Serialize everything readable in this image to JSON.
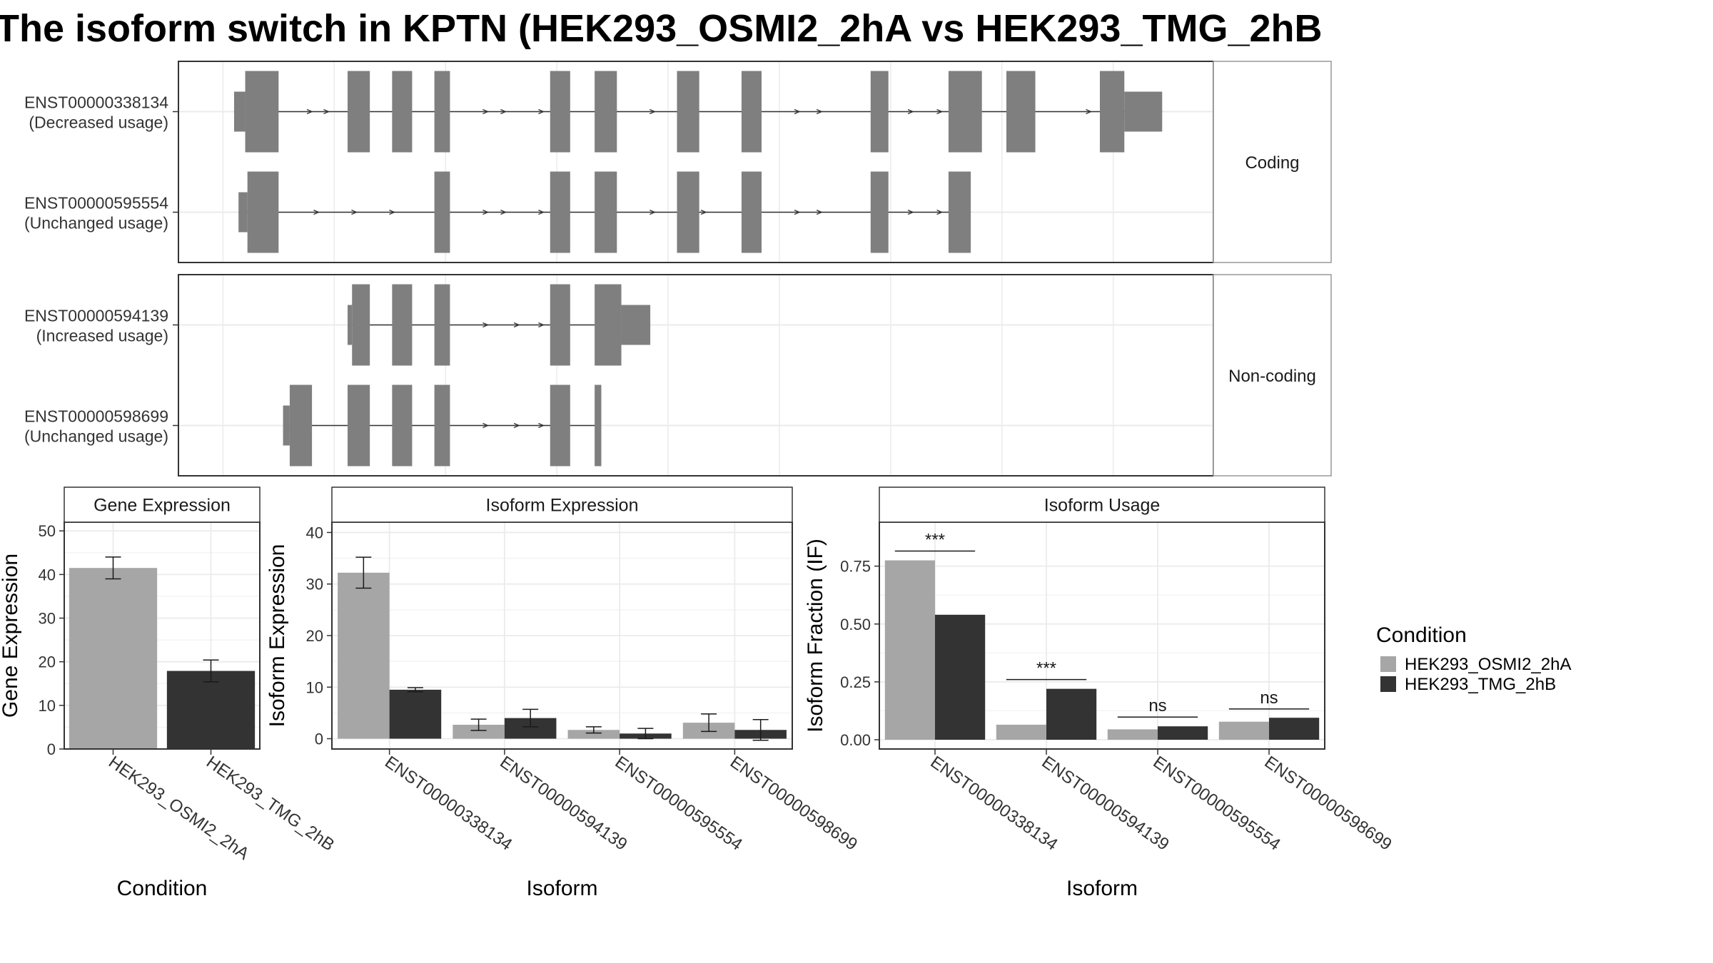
{
  "title": "The isoform switch in KPTN (HEK293_OSMI2_2hA vs HEK293_TMG_2hB",
  "colors": {
    "exon": "#7f7f7f",
    "condition_a": "#a6a6a6",
    "condition_b": "#333333",
    "panel_border": "#333333",
    "strip_fill": "#ffffff",
    "grid": "#ebebeb",
    "text": "#333333"
  },
  "chart_data": [
    {
      "type": "gene-structure",
      "strip_label": "Coding",
      "isoforms": [
        {
          "id": "ENST00000338134",
          "usage": "(Decreased usage)",
          "exons": [
            [
              0.1,
              0.2,
              "utr"
            ],
            [
              0.2,
              0.5,
              "cds"
            ],
            [
              1.12,
              1.32,
              "cds"
            ],
            [
              1.52,
              1.7,
              "cds"
            ],
            [
              1.9,
              2.04,
              "cds"
            ],
            [
              2.94,
              3.12,
              "cds"
            ],
            [
              3.34,
              3.54,
              "cds"
            ],
            [
              4.08,
              4.28,
              "cds"
            ],
            [
              4.66,
              4.84,
              "cds"
            ],
            [
              5.82,
              5.98,
              "cds"
            ],
            [
              6.52,
              6.82,
              "cds"
            ],
            [
              7.04,
              7.3,
              "cds"
            ],
            [
              7.88,
              8.1,
              "cds"
            ],
            [
              8.1,
              8.44,
              "utr"
            ]
          ],
          "arrows": [
            0.8,
            0.95,
            2.38,
            2.54,
            2.88,
            3.88,
            5.18,
            5.38,
            6.2,
            6.46,
            7.8,
            7.96
          ]
        },
        {
          "id": "ENST00000595554",
          "usage": "(Unchanged usage)",
          "exons": [
            [
              0.14,
              0.22,
              "utr"
            ],
            [
              0.22,
              0.5,
              "cds"
            ],
            [
              1.9,
              2.04,
              "cds"
            ],
            [
              2.94,
              3.12,
              "cds"
            ],
            [
              3.34,
              3.54,
              "cds"
            ],
            [
              4.08,
              4.28,
              "cds"
            ],
            [
              4.66,
              4.84,
              "cds"
            ],
            [
              5.82,
              5.98,
              "cds"
            ],
            [
              6.52,
              6.72,
              "cds"
            ]
          ],
          "arrows": [
            0.86,
            1.2,
            1.54,
            2.38,
            2.54,
            2.88,
            3.88,
            4.34,
            5.18,
            5.38,
            6.2,
            6.46
          ]
        }
      ]
    },
    {
      "type": "gene-structure",
      "strip_label": "Non-coding",
      "isoforms": [
        {
          "id": "ENST00000594139",
          "usage": "(Increased usage)",
          "exons": [
            [
              1.12,
              1.16,
              "utr"
            ],
            [
              1.16,
              1.32,
              "cds"
            ],
            [
              1.52,
              1.7,
              "cds"
            ],
            [
              1.9,
              2.04,
              "cds"
            ],
            [
              2.94,
              3.12,
              "cds"
            ],
            [
              3.34,
              3.58,
              "cds"
            ],
            [
              3.58,
              3.84,
              "utr"
            ]
          ],
          "arrows": [
            2.38,
            2.66,
            2.88
          ]
        },
        {
          "id": "ENST00000598699",
          "usage": "(Unchanged usage)",
          "exons": [
            [
              0.54,
              0.6,
              "utr"
            ],
            [
              0.6,
              0.8,
              "cds"
            ],
            [
              1.12,
              1.32,
              "cds"
            ],
            [
              1.52,
              1.7,
              "cds"
            ],
            [
              1.9,
              2.04,
              "cds"
            ],
            [
              2.94,
              3.12,
              "cds"
            ],
            [
              3.34,
              3.4,
              "cds"
            ]
          ],
          "arrows": [
            2.38,
            2.66,
            2.88
          ]
        }
      ]
    },
    {
      "type": "bar",
      "strip_label": "Gene Expression",
      "xlabel": "Condition",
      "ylabel": "Gene Expression",
      "ylim": [
        0,
        52
      ],
      "yticks": [
        0,
        10,
        20,
        30,
        40,
        50
      ],
      "categories": [
        "HEK293_OSMI2_2hA",
        "HEK293_TMG_2hB"
      ],
      "series": [
        {
          "name": "HEK293_OSMI2_2hA",
          "values": [
            41.5,
            null
          ],
          "err": [
            2.5,
            null
          ]
        },
        {
          "name": "HEK293_TMG_2hB",
          "values": [
            null,
            17.9
          ],
          "err": [
            null,
            2.5
          ]
        }
      ]
    },
    {
      "type": "bar",
      "strip_label": "Isoform Expression",
      "xlabel": "Isoform",
      "ylabel": "Isoform Expression",
      "ylim": [
        -2,
        42
      ],
      "yticks": [
        0,
        10,
        20,
        30,
        40
      ],
      "categories": [
        "ENST00000338134",
        "ENST00000594139",
        "ENST00000595554",
        "ENST00000598699"
      ],
      "series": [
        {
          "name": "HEK293_OSMI2_2hA",
          "values": [
            32.2,
            2.7,
            1.7,
            3.1
          ],
          "err": [
            3.0,
            1.1,
            0.6,
            1.7
          ]
        },
        {
          "name": "HEK293_TMG_2hB",
          "values": [
            9.5,
            4.0,
            1.0,
            1.7
          ],
          "err": [
            0.4,
            1.7,
            1.0,
            2.0
          ]
        }
      ]
    },
    {
      "type": "bar",
      "strip_label": "Isoform Usage",
      "xlabel": "Isoform",
      "ylabel": "Isoform Fraction (IF)",
      "ylim": [
        -0.04,
        0.94
      ],
      "yticks": [
        0,
        0.25,
        0.5,
        0.75
      ],
      "ytick_labels": [
        "0.00",
        "0.25",
        "0.50",
        "0.75"
      ],
      "categories": [
        "ENST00000338134",
        "ENST00000594139",
        "ENST00000595554",
        "ENST00000598699"
      ],
      "series": [
        {
          "name": "HEK293_OSMI2_2hA",
          "values": [
            0.775,
            0.065,
            0.045,
            0.078
          ]
        },
        {
          "name": "HEK293_TMG_2hB",
          "values": [
            0.54,
            0.22,
            0.058,
            0.095
          ]
        }
      ],
      "significance": [
        {
          "category": "ENST00000338134",
          "label": "***",
          "y": 0.815
        },
        {
          "category": "ENST00000594139",
          "label": "***",
          "y": 0.26
        },
        {
          "category": "ENST00000595554",
          "label": "ns",
          "y": 0.098
        },
        {
          "category": "ENST00000598699",
          "label": "ns",
          "y": 0.133
        }
      ]
    }
  ],
  "legend": {
    "title": "Condition",
    "items": [
      "HEK293_OSMI2_2hA",
      "HEK293_TMG_2hB"
    ]
  }
}
